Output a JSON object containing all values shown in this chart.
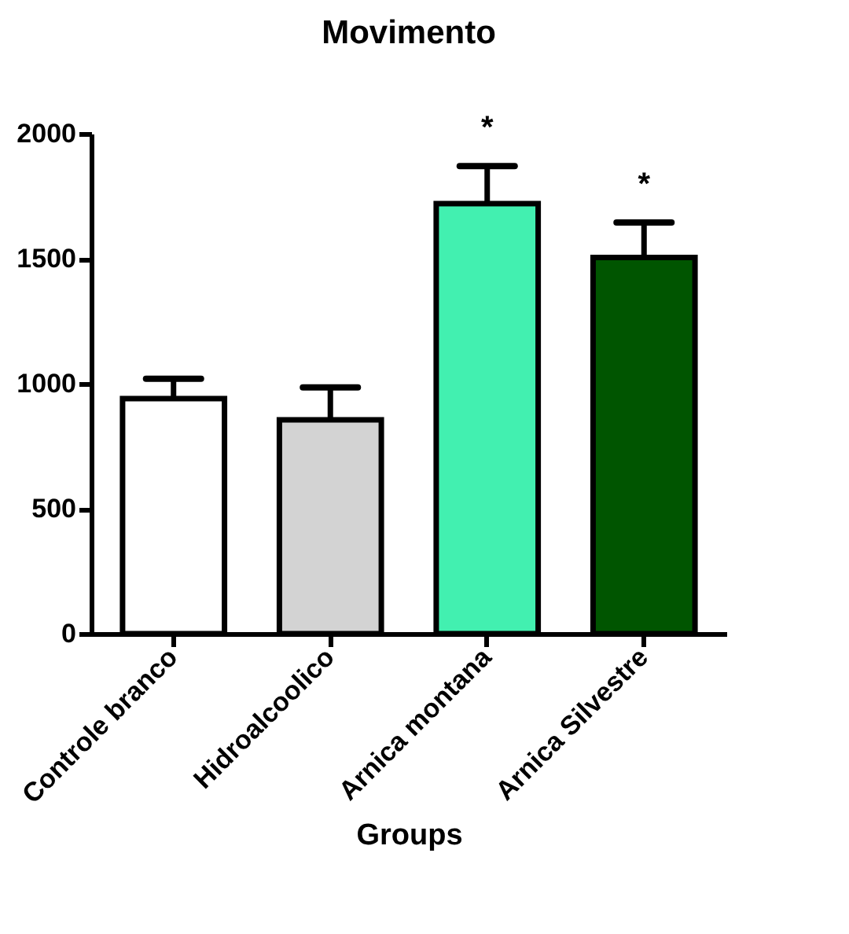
{
  "chart_data": {
    "type": "bar",
    "title": "Movimento",
    "xlabel": "Groups",
    "categories": [
      "Controle branco",
      "Hidroalcoolico",
      "Arnica montana",
      "Arnica Silvestre"
    ],
    "values": [
      940,
      855,
      1720,
      1505
    ],
    "errors": [
      [
        940,
        1020
      ],
      [
        855,
        985
      ],
      [
        1720,
        1870
      ],
      [
        1505,
        1645
      ]
    ],
    "colors": [
      "#ffffff",
      "#d3d3d3",
      "#42f0b0",
      "#005500"
    ],
    "ylim": [
      0,
      2000
    ],
    "yticks": [
      0,
      500,
      1000,
      1500,
      2000
    ],
    "grid": false,
    "annotations": [
      {
        "text": "*",
        "x": "Arnica montana",
        "y": 1870
      },
      {
        "text": "*",
        "x": "Arnica Silvestre",
        "y": 1645
      }
    ]
  }
}
